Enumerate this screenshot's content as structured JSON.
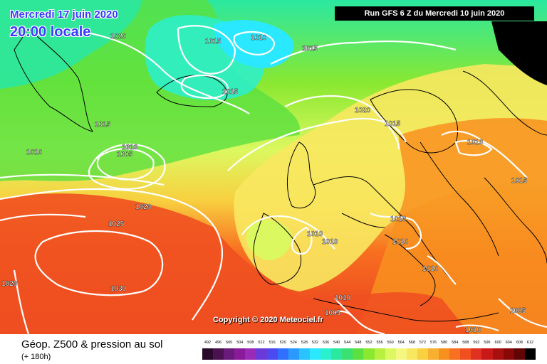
{
  "header": {
    "date": "Mercredi 17 juin 2020",
    "time": "20:00 locale",
    "run": "Run GFS 6 Z du Mercredi 10 juin 2020"
  },
  "copyright": "Copyright © 2020 Meteociel.fr",
  "footer": {
    "title": "Géop. Z500 & pression au sol",
    "subtitle": "(+ 180h)"
  },
  "scale": {
    "ticks": [
      "492",
      "496",
      "500",
      "504",
      "508",
      "512",
      "516",
      "520",
      "524",
      "528",
      "532",
      "536",
      "540",
      "544",
      "548",
      "552",
      "556",
      "560",
      "564",
      "568",
      "572",
      "576",
      "580",
      "584",
      "588",
      "592",
      "596",
      "600",
      "604",
      "608",
      "612"
    ],
    "colors": [
      "#2a0a2a",
      "#4b1150",
      "#6a1a7a",
      "#8a1a9a",
      "#9a2ab8",
      "#6a3ad8",
      "#4a4af0",
      "#3070ff",
      "#2a9aff",
      "#29c4ff",
      "#2ae8ff",
      "#2af0d0",
      "#2ae8a0",
      "#3ae070",
      "#5ae040",
      "#8ae830",
      "#b8f040",
      "#dcf860",
      "#f4f880",
      "#f8e860",
      "#f8d040",
      "#f8b030",
      "#f89020",
      "#f87020",
      "#f05020",
      "#e03020",
      "#c81818",
      "#a81010",
      "#880808",
      "#600404",
      "#000000"
    ]
  },
  "isobar_labels": [
    "1020",
    "1015",
    "1010",
    "1015",
    "1015",
    "1015",
    "1010",
    "1005",
    "1010",
    "1020",
    "1025",
    "1030",
    "1020",
    "1020",
    "1015",
    "1010",
    "1015",
    "1010",
    "1010",
    "1010",
    "1010",
    "1010",
    "1010",
    "1005",
    "1010",
    "1005"
  ]
}
